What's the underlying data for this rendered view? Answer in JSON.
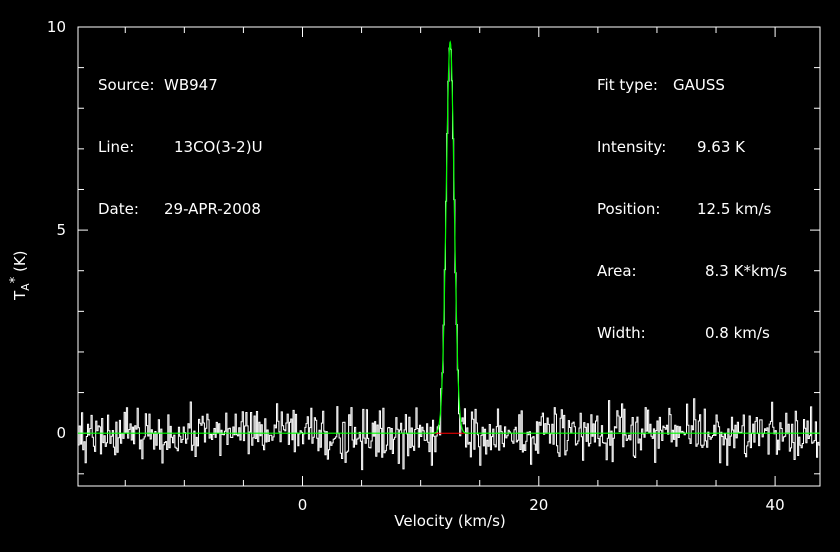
{
  "chart_data": {
    "type": "line",
    "xlabel": "Velocity (km/s)",
    "ylabel_main": "T",
    "ylabel_sub": "A",
    "ylabel_sup": "*",
    "ylabel_unit": " (K)",
    "xlim": [
      -19.0,
      43.8
    ],
    "ylim": [
      -1.3,
      10.0
    ],
    "xticks": [
      0,
      20,
      40
    ],
    "yticks": [
      0,
      5,
      10
    ],
    "xtick_labels": [
      "0",
      "20",
      "40"
    ],
    "ytick_labels": [
      "0",
      "5",
      "10"
    ],
    "grid": false,
    "series": [
      {
        "role": "spectrum",
        "color": "#ffffff",
        "style": "histogram noise with a Gaussian line"
      },
      {
        "role": "gaussian fit",
        "color": "#00ff00",
        "peak": 9.63,
        "center": 12.5,
        "fwhm": 0.8
      },
      {
        "role": "fit baseline",
        "color": "#ff0000",
        "range": [
          10.9,
          14.1
        ]
      }
    ]
  },
  "info_left": [
    {
      "label": "Source:",
      "value": "WB947"
    },
    {
      "label": "Line:",
      "value": "13CO(3-2)U"
    },
    {
      "label": "Date:",
      "value": "29-APR-2008"
    }
  ],
  "info_right": [
    {
      "label": "Fit type:",
      "value": "GAUSS"
    },
    {
      "label": "Intensity:",
      "value": "9.63 K"
    },
    {
      "label": "Position:",
      "value": "12.5 km/s"
    },
    {
      "label": "Area:",
      "value": "8.3 K*km/s"
    },
    {
      "label": "Width:",
      "value": "0.8 km/s"
    }
  ]
}
